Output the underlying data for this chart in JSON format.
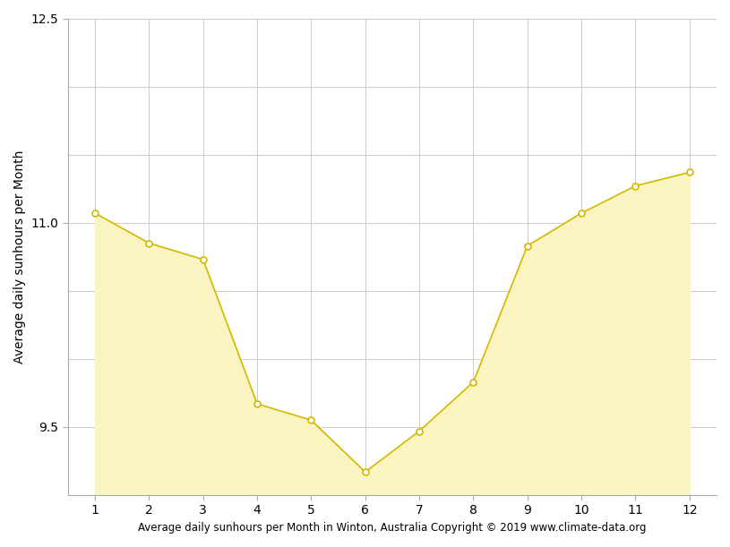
{
  "months": [
    1,
    2,
    3,
    4,
    5,
    6,
    7,
    8,
    9,
    10,
    11,
    12
  ],
  "sunhours": [
    11.07,
    10.85,
    10.73,
    9.67,
    9.55,
    9.17,
    9.47,
    9.83,
    10.83,
    11.07,
    11.27,
    11.37
  ],
  "line_color": "#d4b800",
  "fill_color": "#faf5c0",
  "marker_color": "#ffffff",
  "marker_edge_color": "#d4b800",
  "ylabel": "Average daily sunhours per Month",
  "xlabel": "Average daily sunhours per Month in Winton, Australia Copyright © 2019 www.climate-data.org",
  "ylim_min": 9.0,
  "ylim_max": 12.5,
  "ytick_labels": [
    9.5,
    11.0,
    12.5
  ],
  "ytick_minor": [
    9.0,
    9.5,
    10.0,
    10.5,
    11.0,
    11.5,
    12.0,
    12.5
  ],
  "xticks": [
    1,
    2,
    3,
    4,
    5,
    6,
    7,
    8,
    9,
    10,
    11,
    12
  ],
  "background_color": "#ffffff",
  "grid_color": "#cccccc",
  "label_fontsize": 10,
  "tick_fontsize": 10,
  "xlabel_fontsize": 8.5
}
